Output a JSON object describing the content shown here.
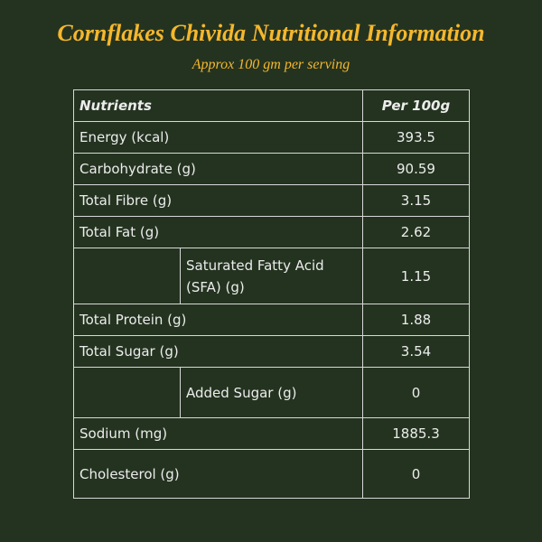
{
  "header": {
    "title": "Cornflakes Chivida Nutritional Information",
    "subtitle": "Approx 100 gm per serving"
  },
  "table": {
    "columns": [
      "Nutrients",
      "Per 100g"
    ],
    "rows": [
      {
        "label": "Energy (kcal)",
        "value": "393.5"
      },
      {
        "label": "Carbohydrate (g)",
        "value": "90.59"
      },
      {
        "label": "Total Fibre (g)",
        "value": "3.15"
      },
      {
        "label": "Total Fat (g)",
        "value": "2.62",
        "subrows": [
          {
            "label": "Saturated Fatty Acid (SFA) (g)",
            "value": "1.15"
          }
        ]
      },
      {
        "label": "Total Protein (g)",
        "value": "1.88"
      },
      {
        "label": "Total Sugar (g)",
        "value": "3.54",
        "subrows": [
          {
            "label": "Added Sugar (g)",
            "value": "0"
          }
        ]
      },
      {
        "label": "Sodium (mg)",
        "value": "1885.3"
      },
      {
        "label": "Cholesterol (g)",
        "value": "0"
      }
    ]
  }
}
